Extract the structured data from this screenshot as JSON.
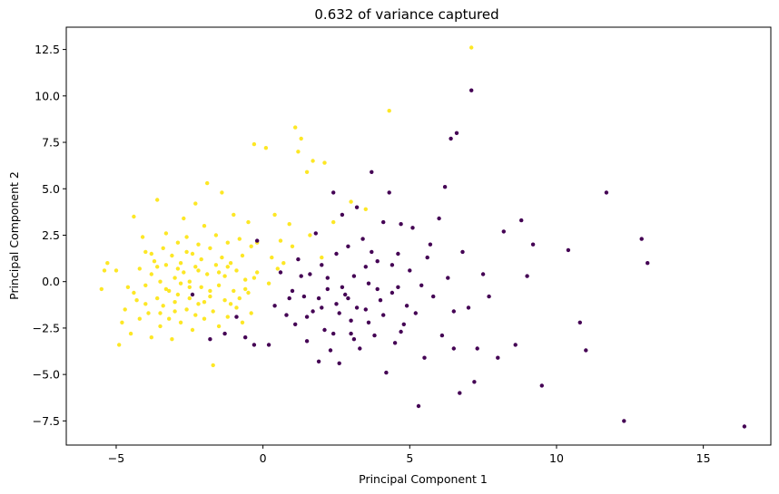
{
  "chart_data": {
    "type": "scatter",
    "title": "0.632 of variance captured",
    "xlabel": "Principal Component 1",
    "ylabel": "Principal Component 2",
    "xlim": [
      -6.7,
      17.3
    ],
    "ylim": [
      -8.8,
      13.7
    ],
    "xticks": [
      -5,
      0,
      5,
      10,
      15
    ],
    "yticks": [
      -7.5,
      -5.0,
      -2.5,
      0.0,
      2.5,
      5.0,
      7.5,
      10.0,
      12.5
    ],
    "xtick_labels": [
      "−5",
      "0",
      "5",
      "10",
      "15"
    ],
    "ytick_labels": [
      "−7.5",
      "−5.0",
      "−2.5",
      "0.0",
      "2.5",
      "5.0",
      "7.5",
      "10.0",
      "12.5"
    ],
    "grid": false,
    "legend": "none",
    "series": [
      {
        "color": "#fde725",
        "points": [
          [
            -5.5,
            -0.4
          ],
          [
            -5.4,
            0.6
          ],
          [
            -5.3,
            1.0
          ],
          [
            -5.0,
            0.6
          ],
          [
            -4.9,
            -3.4
          ],
          [
            -4.8,
            -2.2
          ],
          [
            -4.7,
            -1.5
          ],
          [
            -4.6,
            -0.3
          ],
          [
            -4.5,
            -2.8
          ],
          [
            -4.4,
            3.5
          ],
          [
            -4.3,
            -1.0
          ],
          [
            -4.2,
            0.7
          ],
          [
            -4.2,
            -2.0
          ],
          [
            -4.1,
            2.4
          ],
          [
            -4.0,
            -0.2
          ],
          [
            -4.0,
            1.6
          ],
          [
            -3.9,
            -1.7
          ],
          [
            -3.8,
            0.4
          ],
          [
            -3.8,
            -3.0
          ],
          [
            -3.7,
            1.1
          ],
          [
            -3.6,
            -0.9
          ],
          [
            -3.6,
            4.4
          ],
          [
            -3.5,
            0.0
          ],
          [
            -3.5,
            -2.4
          ],
          [
            -3.4,
            1.8
          ],
          [
            -3.4,
            -1.3
          ],
          [
            -3.3,
            0.9
          ],
          [
            -3.3,
            2.6
          ],
          [
            -3.2,
            -0.5
          ],
          [
            -3.2,
            -2.0
          ],
          [
            -3.1,
            1.4
          ],
          [
            -3.1,
            -3.1
          ],
          [
            -3.0,
            0.2
          ],
          [
            -3.0,
            -1.1
          ],
          [
            -2.9,
            2.1
          ],
          [
            -2.9,
            -0.7
          ],
          [
            -2.8,
            1.0
          ],
          [
            -2.8,
            -2.2
          ],
          [
            -2.7,
            0.5
          ],
          [
            -2.7,
            3.4
          ],
          [
            -2.6,
            -1.5
          ],
          [
            -2.6,
            2.4
          ],
          [
            -2.5,
            0.0
          ],
          [
            -2.5,
            -0.9
          ],
          [
            -2.4,
            1.5
          ],
          [
            -2.4,
            -2.6
          ],
          [
            -2.3,
            4.2
          ],
          [
            -2.3,
            0.8
          ],
          [
            -2.2,
            -1.2
          ],
          [
            -2.2,
            2.0
          ],
          [
            -2.1,
            -0.3
          ],
          [
            -2.1,
            1.2
          ],
          [
            -2.0,
            3.0
          ],
          [
            -2.0,
            -2.0
          ],
          [
            -1.9,
            0.4
          ],
          [
            -1.9,
            5.3
          ],
          [
            -1.8,
            -0.8
          ],
          [
            -1.8,
            1.8
          ],
          [
            -1.7,
            -4.5
          ],
          [
            -1.7,
            -1.6
          ],
          [
            -1.6,
            0.9
          ],
          [
            -1.6,
            2.5
          ],
          [
            -1.5,
            -0.2
          ],
          [
            -1.5,
            -2.4
          ],
          [
            -1.4,
            1.3
          ],
          [
            -1.4,
            4.8
          ],
          [
            -1.3,
            -1.0
          ],
          [
            -1.3,
            0.3
          ],
          [
            -1.2,
            2.1
          ],
          [
            -1.2,
            -1.9
          ],
          [
            -1.1,
            1.0
          ],
          [
            -1.0,
            -0.5
          ],
          [
            -1.0,
            3.6
          ],
          [
            -0.9,
            0.6
          ],
          [
            -0.9,
            -1.4
          ],
          [
            -0.8,
            2.3
          ],
          [
            -0.8,
            -0.9
          ],
          [
            -0.7,
            1.4
          ],
          [
            -0.7,
            -2.2
          ],
          [
            -0.6,
            0.1
          ],
          [
            -0.5,
            3.2
          ],
          [
            -0.5,
            -0.6
          ],
          [
            -0.4,
            1.9
          ],
          [
            -0.4,
            -1.7
          ],
          [
            -0.3,
            7.4
          ],
          [
            -0.2,
            0.5
          ],
          [
            -0.2,
            2.1
          ],
          [
            0.1,
            7.2
          ],
          [
            0.2,
            -0.1
          ],
          [
            0.3,
            1.3
          ],
          [
            0.4,
            3.6
          ],
          [
            0.5,
            0.7
          ],
          [
            0.6,
            2.2
          ],
          [
            0.7,
            1.0
          ],
          [
            0.9,
            3.1
          ],
          [
            1.0,
            1.9
          ],
          [
            1.1,
            8.3
          ],
          [
            1.2,
            7.0
          ],
          [
            1.3,
            7.7
          ],
          [
            1.5,
            5.9
          ],
          [
            1.6,
            2.5
          ],
          [
            1.7,
            6.5
          ],
          [
            2.0,
            1.3
          ],
          [
            2.1,
            6.4
          ],
          [
            2.4,
            3.2
          ],
          [
            3.0,
            4.3
          ],
          [
            3.5,
            3.9
          ],
          [
            4.3,
            9.2
          ],
          [
            7.1,
            12.6
          ],
          [
            -2.5,
            -0.3
          ],
          [
            -3.0,
            -1.6
          ],
          [
            -2.2,
            0.6
          ],
          [
            -3.6,
            0.8
          ],
          [
            -4.4,
            -0.6
          ],
          [
            -1.5,
            0.5
          ],
          [
            -2.8,
            -0.1
          ],
          [
            -3.3,
            -0.4
          ],
          [
            -2.0,
            -1.1
          ],
          [
            -1.2,
            0.8
          ],
          [
            -0.6,
            -0.4
          ],
          [
            -4.0,
            -1.2
          ],
          [
            -3.8,
            1.5
          ],
          [
            -2.9,
            0.7
          ],
          [
            -2.3,
            -1.8
          ],
          [
            -1.8,
            -0.5
          ],
          [
            -2.6,
            1.6
          ],
          [
            -3.5,
            -1.7
          ],
          [
            -1.1,
            -1.2
          ],
          [
            -0.3,
            0.2
          ]
        ]
      },
      {
        "color": "#440154",
        "points": [
          [
            -2.4,
            -0.7
          ],
          [
            -1.8,
            -3.1
          ],
          [
            -1.3,
            -2.8
          ],
          [
            -0.9,
            -1.9
          ],
          [
            -0.6,
            -3.0
          ],
          [
            -0.3,
            -3.4
          ],
          [
            -0.2,
            2.2
          ],
          [
            0.2,
            -3.4
          ],
          [
            0.4,
            -1.3
          ],
          [
            0.6,
            0.5
          ],
          [
            0.8,
            -1.8
          ],
          [
            1.0,
            -0.5
          ],
          [
            1.1,
            -2.3
          ],
          [
            1.2,
            1.2
          ],
          [
            1.4,
            -0.8
          ],
          [
            1.5,
            -3.2
          ],
          [
            1.6,
            0.4
          ],
          [
            1.7,
            -1.6
          ],
          [
            1.8,
            2.6
          ],
          [
            1.9,
            -4.3
          ],
          [
            2.0,
            0.9
          ],
          [
            2.1,
            -2.6
          ],
          [
            2.2,
            -0.4
          ],
          [
            2.3,
            -3.7
          ],
          [
            2.4,
            4.8
          ],
          [
            2.5,
            1.5
          ],
          [
            2.5,
            -1.2
          ],
          [
            2.6,
            -4.4
          ],
          [
            2.7,
            3.6
          ],
          [
            2.8,
            -0.7
          ],
          [
            2.9,
            1.9
          ],
          [
            3.0,
            -2.1
          ],
          [
            3.1,
            0.3
          ],
          [
            3.2,
            4.0
          ],
          [
            3.3,
            -3.6
          ],
          [
            3.4,
            2.3
          ],
          [
            3.5,
            -1.5
          ],
          [
            3.6,
            -0.1
          ],
          [
            3.7,
            5.9
          ],
          [
            3.8,
            -2.9
          ],
          [
            3.9,
            1.1
          ],
          [
            4.0,
            -1.0
          ],
          [
            4.1,
            3.2
          ],
          [
            4.2,
            -4.9
          ],
          [
            4.3,
            4.8
          ],
          [
            4.4,
            -0.6
          ],
          [
            4.5,
            -3.3
          ],
          [
            4.6,
            1.5
          ],
          [
            4.7,
            3.1
          ],
          [
            4.8,
            -2.3
          ],
          [
            5.0,
            0.6
          ],
          [
            5.1,
            2.9
          ],
          [
            5.2,
            -1.7
          ],
          [
            5.3,
            -6.7
          ],
          [
            5.5,
            -4.1
          ],
          [
            5.6,
            1.3
          ],
          [
            5.8,
            -0.8
          ],
          [
            6.0,
            3.4
          ],
          [
            6.1,
            -2.9
          ],
          [
            6.2,
            5.1
          ],
          [
            6.3,
            0.2
          ],
          [
            6.4,
            7.7
          ],
          [
            6.5,
            -3.6
          ],
          [
            6.6,
            8.0
          ],
          [
            6.7,
            -6.0
          ],
          [
            6.8,
            1.6
          ],
          [
            7.0,
            -1.4
          ],
          [
            7.1,
            10.3
          ],
          [
            7.2,
            -5.4
          ],
          [
            7.3,
            -3.6
          ],
          [
            7.5,
            0.4
          ],
          [
            7.7,
            -0.8
          ],
          [
            8.0,
            -4.1
          ],
          [
            8.2,
            2.7
          ],
          [
            8.6,
            -3.4
          ],
          [
            8.8,
            3.3
          ],
          [
            9.0,
            0.3
          ],
          [
            9.2,
            2.0
          ],
          [
            9.5,
            -5.6
          ],
          [
            10.4,
            1.7
          ],
          [
            10.8,
            -2.2
          ],
          [
            11.0,
            -3.7
          ],
          [
            11.7,
            4.8
          ],
          [
            12.3,
            -7.5
          ],
          [
            12.9,
            2.3
          ],
          [
            13.1,
            1.0
          ],
          [
            16.4,
            -7.8
          ],
          [
            3.2,
            -1.4
          ],
          [
            2.9,
            -0.9
          ],
          [
            3.6,
            -2.2
          ],
          [
            4.1,
            -1.8
          ],
          [
            2.6,
            -1.7
          ],
          [
            3.5,
            0.8
          ],
          [
            4.6,
            -0.3
          ],
          [
            1.9,
            -0.9
          ],
          [
            3.0,
            -2.8
          ],
          [
            2.2,
            0.2
          ],
          [
            4.9,
            -1.3
          ],
          [
            1.5,
            -1.9
          ],
          [
            3.7,
            1.6
          ],
          [
            2.4,
            -2.8
          ],
          [
            4.4,
            0.9
          ],
          [
            5.4,
            -0.2
          ],
          [
            3.1,
            -3.1
          ],
          [
            1.3,
            0.3
          ],
          [
            2.0,
            -1.4
          ],
          [
            3.9,
            -0.4
          ],
          [
            4.7,
            -2.7
          ],
          [
            5.7,
            2.0
          ],
          [
            0.9,
            -0.9
          ],
          [
            6.5,
            -1.6
          ],
          [
            2.7,
            -0.3
          ]
        ]
      }
    ]
  }
}
